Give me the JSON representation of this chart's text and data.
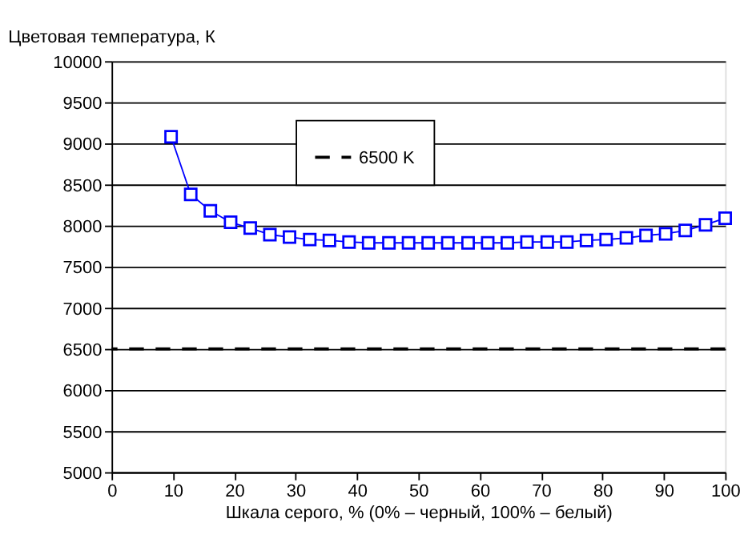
{
  "chart_data": {
    "type": "line",
    "title": "Цветовая температура, К",
    "xlabel": "Шкала серого, % (0% – черный, 100% – белый)",
    "x": [
      9.7,
      12.9,
      16.1,
      19.4,
      22.6,
      25.8,
      29.0,
      32.3,
      35.5,
      38.7,
      41.9,
      45.2,
      48.4,
      51.6,
      54.8,
      58.1,
      61.3,
      64.5,
      67.7,
      71.0,
      74.2,
      77.4,
      80.6,
      83.9,
      87.1,
      90.3,
      93.5,
      96.8,
      100
    ],
    "series": [
      {
        "color": "#0000ff",
        "values": [
          9080,
          8380,
          8180,
          8040,
          7970,
          7890,
          7860,
          7830,
          7820,
          7800,
          7790,
          7790,
          7790,
          7790,
          7790,
          7790,
          7790,
          7790,
          7800,
          7800,
          7800,
          7820,
          7830,
          7850,
          7880,
          7900,
          7940,
          8010,
          8090
        ]
      }
    ],
    "xlim": [
      0,
      100
    ],
    "xticks": [
      0,
      10,
      20,
      30,
      40,
      50,
      60,
      70,
      80,
      90,
      100
    ],
    "ylim": [
      5000,
      10000
    ],
    "yticks": [
      5000,
      5500,
      6000,
      6500,
      7000,
      7500,
      8000,
      8500,
      9000,
      9500,
      10000
    ],
    "ref_lines": [
      {
        "axis": "y",
        "value": 6500,
        "label": "6500 K",
        "color": "#000000",
        "line_style": "dashed"
      }
    ],
    "grid": "y",
    "marker": "square",
    "legend": "top",
    "line_style": "solid"
  }
}
